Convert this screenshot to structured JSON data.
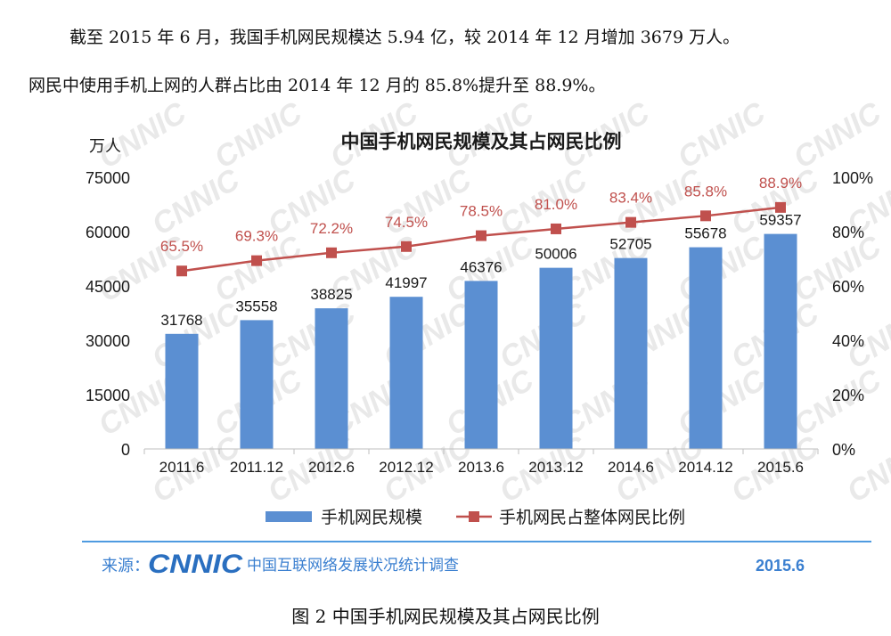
{
  "document": {
    "paragraph1": "截至 2015 年 6 月，我国手机网民规模达 5.94 亿，较 2014 年 12 月增加 3679 万人。",
    "paragraph2": "网民中使用手机上网的人群占比由 2014 年 12 月的 85.8%提升至 88.9%。",
    "caption": "图 2 中国手机网民规模及其占网民比例"
  },
  "chart_data": {
    "type": "bar",
    "title": "中国手机网民规模及其占网民比例",
    "y_unit_label": "万人",
    "categories": [
      "2011.6",
      "2011.12",
      "2012.6",
      "2012.12",
      "2013.6",
      "2013.12",
      "2014.6",
      "2014.12",
      "2015.6"
    ],
    "series": [
      {
        "name": "手机网民规模",
        "kind": "bar",
        "axis": "left",
        "color": "#5b8fd2",
        "values": [
          31768,
          35558,
          38825,
          41997,
          46376,
          50006,
          52705,
          55678,
          59357
        ],
        "labels": [
          "31768",
          "35558",
          "38825",
          "41997",
          "46376",
          "50006",
          "52705",
          "55678",
          "59357"
        ]
      },
      {
        "name": "手机网民占整体网民比例",
        "kind": "line",
        "axis": "right",
        "color": "#c0504d",
        "values": [
          65.5,
          69.3,
          72.2,
          74.5,
          78.5,
          81.0,
          83.4,
          85.8,
          88.9
        ],
        "labels": [
          "65.5%",
          "69.3%",
          "72.2%",
          "74.5%",
          "78.5%",
          "81.0%",
          "83.4%",
          "85.8%",
          "88.9%"
        ]
      }
    ],
    "ylim_left": [
      0,
      75000
    ],
    "yticks_left": [
      "75000",
      "60000",
      "45000",
      "30000",
      "15000",
      "0"
    ],
    "ylim_right": [
      0,
      100
    ],
    "yticks_right": [
      "100%",
      "80%",
      "60%",
      "40%",
      "20%",
      "0%"
    ],
    "grid": false,
    "legend_position": "bottom"
  },
  "footer": {
    "source_label": "来源：",
    "logo_text": "CNNIC",
    "source_text": "中国互联网络发展状况统计调查",
    "date": "2015.6",
    "rule_color": "#4f9be0"
  },
  "watermark": "CNNIC"
}
